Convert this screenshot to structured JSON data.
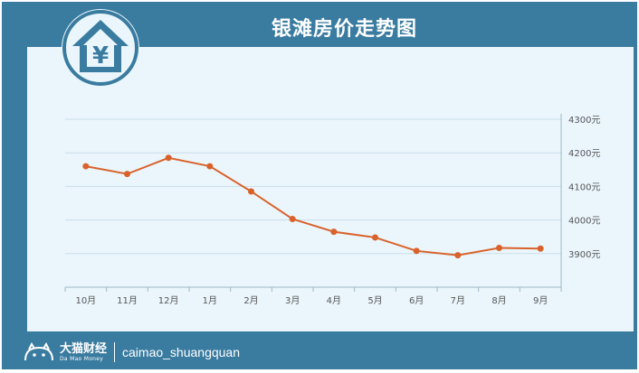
{
  "title": "银滩房价走势图",
  "footer": {
    "brand_name": "大猫财经",
    "brand_sub": "Da Mao Money",
    "handle": "caimao_shuangquan"
  },
  "icons": {
    "logo": "house-yen-icon",
    "brand": "cat-logo-icon"
  },
  "colors": {
    "frame": "#3a7ba0",
    "panel": "#eaf6fc",
    "line": "#d9622b",
    "grid": "#c9dde8"
  },
  "chart_data": {
    "type": "line",
    "categories": [
      "10月",
      "11月",
      "12月",
      "1月",
      "2月",
      "3月",
      "4月",
      "5月",
      "6月",
      "7月",
      "8月",
      "9月"
    ],
    "series": [
      {
        "values": [
          4160,
          4137,
          4185,
          4160,
          4085,
          4003,
          3965,
          3948,
          3908,
          3895,
          3917,
          3915
        ]
      }
    ],
    "y_ticks": [
      "3900元",
      "4000元",
      "4100元",
      "4200元",
      "4300元"
    ],
    "ylim": [
      3800,
      4300
    ],
    "y_axis_position": "right",
    "grid": true
  }
}
